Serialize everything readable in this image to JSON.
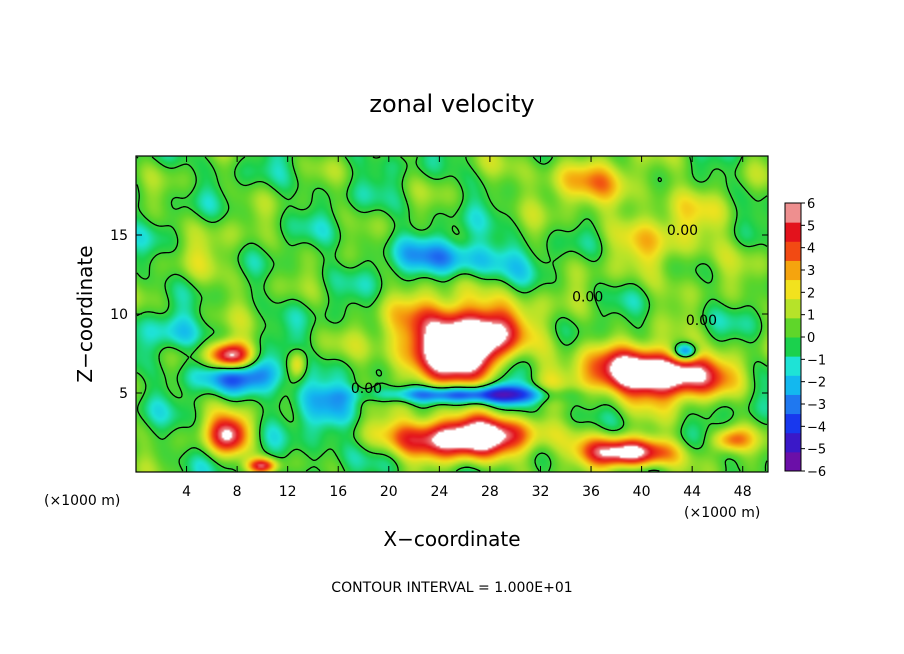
{
  "chart_data": {
    "type": "heatmap",
    "title": "zonal velocity",
    "xlabel": "X−coordinate",
    "ylabel": "Z−coordinate",
    "x_units": "(×1000 m)",
    "y_units": "(×1000 m)",
    "xlim": [
      0,
      50
    ],
    "ylim": [
      0,
      20
    ],
    "x_ticks": [
      4,
      8,
      12,
      16,
      20,
      24,
      28,
      32,
      36,
      40,
      44,
      48
    ],
    "y_ticks": [
      5,
      10,
      15
    ],
    "colorbar": {
      "min": -6,
      "max": 6,
      "ticks": [
        "6",
        "5",
        "4",
        "3",
        "2",
        "1",
        "0",
        "−1",
        "−2",
        "−3",
        "−4",
        "−5",
        "−6"
      ],
      "colors": [
        "#6b0fa8",
        "#3a18c8",
        "#1838ee",
        "#1f78f0",
        "#13b8ef",
        "#1ee3d6",
        "#1bd14d",
        "#5fd62a",
        "#b6e329",
        "#f2e21e",
        "#f5a40e",
        "#f24a13",
        "#e3121c",
        "#ee8f8f"
      ]
    },
    "contour_labels": [
      "0.00",
      "0.00",
      "0.00",
      "0.00"
    ],
    "blobs": [
      {
        "x": 26,
        "z": 8.2,
        "rx": 6.5,
        "rz": 3.2,
        "v": 9
      },
      {
        "x": 26,
        "z": 2.2,
        "rx": 7.5,
        "rz": 1.6,
        "v": 8
      },
      {
        "x": 41,
        "z": 6.2,
        "rx": 6.5,
        "rz": 2.0,
        "v": 9
      },
      {
        "x": 39,
        "z": 1.2,
        "rx": 4.5,
        "rz": 1.2,
        "v": 7
      },
      {
        "x": 7.5,
        "z": 7.3,
        "rx": 2.2,
        "rz": 1.2,
        "v": 8
      },
      {
        "x": 7.5,
        "z": 2.4,
        "rx": 2.2,
        "rz": 1.6,
        "v": 6
      },
      {
        "x": 12.8,
        "z": 6.8,
        "rx": 1.0,
        "rz": 1.2,
        "v": 3.5
      },
      {
        "x": 10,
        "z": 0.4,
        "rx": 1.5,
        "rz": 0.6,
        "v": 5
      },
      {
        "x": 26,
        "z": 4.9,
        "rx": 9,
        "rz": 0.7,
        "v": -5
      },
      {
        "x": 9,
        "z": 6.2,
        "rx": 5,
        "rz": 1.4,
        "v": -4
      },
      {
        "x": 25.5,
        "z": 13.5,
        "rx": 6,
        "rz": 1.6,
        "v": -3
      },
      {
        "x": 30,
        "z": 6.5,
        "rx": 2,
        "rz": 3,
        "v": -3.5
      },
      {
        "x": 43.5,
        "z": 7.6,
        "rx": 1.2,
        "rz": 0.7,
        "v": -5
      },
      {
        "x": 15,
        "z": 3.2,
        "rx": 3,
        "rz": 3,
        "v": -2
      },
      {
        "x": 3,
        "z": 8.5,
        "rx": 3,
        "rz": 1.5,
        "v": -2
      },
      {
        "x": 42,
        "z": 15,
        "rx": 7,
        "rz": 4,
        "v": 2
      },
      {
        "x": 35,
        "z": 18.5,
        "rx": 6,
        "rz": 2,
        "v": 2.5
      },
      {
        "x": 6.5,
        "z": 13.5,
        "rx": 4,
        "rz": 4,
        "v": 1
      },
      {
        "x": 47,
        "z": 2,
        "rx": 2,
        "rz": 1,
        "v": 4
      }
    ]
  },
  "footer": "CONTOUR INTERVAL = 1.000E+01"
}
